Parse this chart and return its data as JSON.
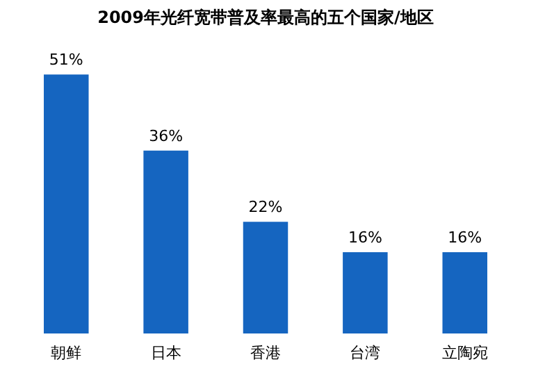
{
  "chart_data": {
    "type": "bar",
    "title": "2009年光纤宽带普及率最高的五个国家/地区",
    "categories": [
      "朝鲜",
      "日本",
      "香港",
      "台湾",
      "立陶宛"
    ],
    "values": [
      51,
      36,
      22,
      16,
      16
    ],
    "value_labels": [
      "51%",
      "36%",
      "22%",
      "16%",
      "16%"
    ],
    "color": "#1565c0"
  }
}
